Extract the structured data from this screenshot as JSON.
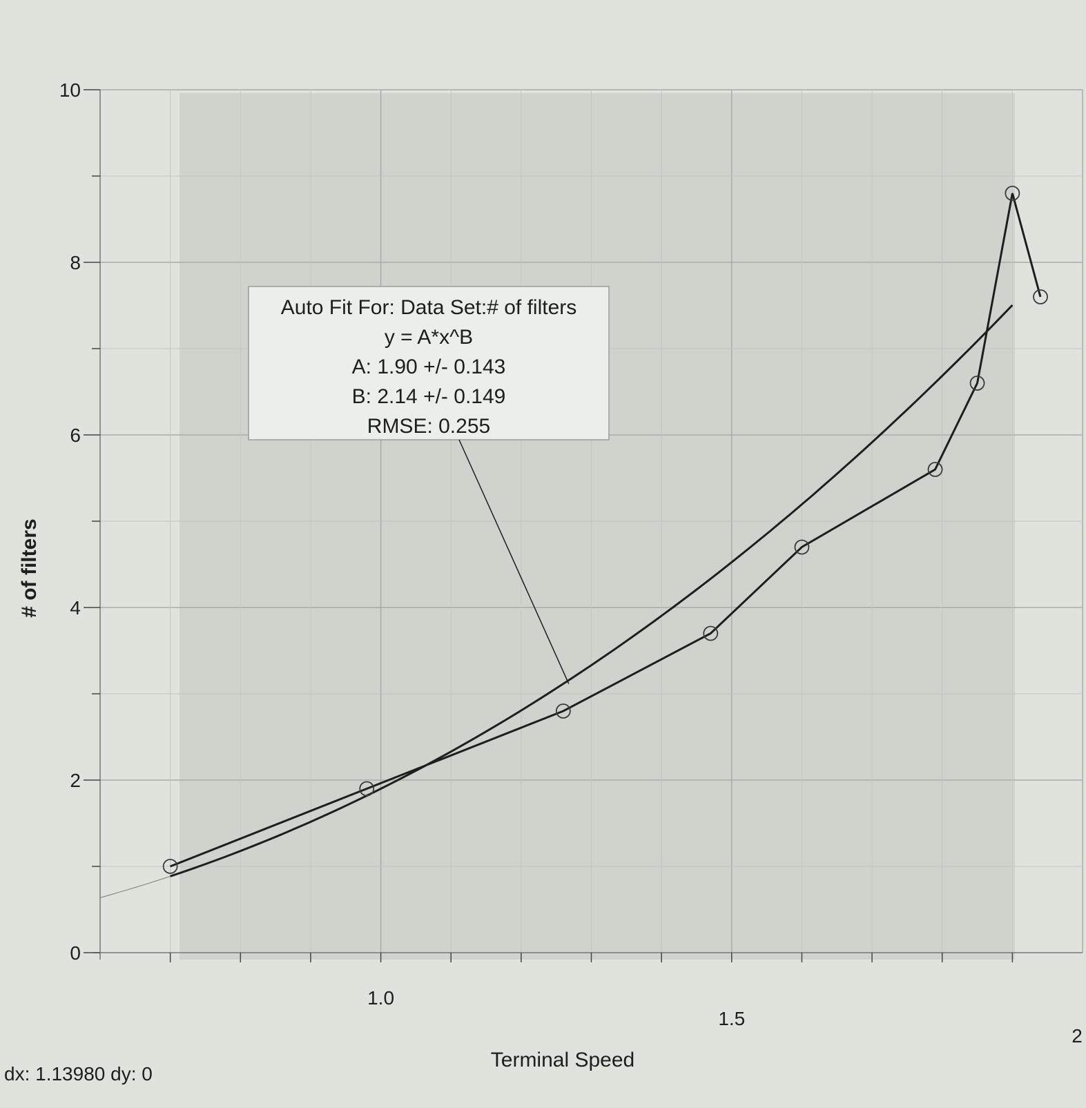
{
  "chart_data": {
    "type": "scatter",
    "xlabel": "Terminal Speed",
    "ylabel": "# of filters",
    "xlim": [
      0.6,
      2.0
    ],
    "ylim": [
      0,
      10
    ],
    "x_ticks": [
      "1.0",
      "1.5",
      "2"
    ],
    "y_ticks": [
      "0",
      "2",
      "4",
      "6",
      "8",
      "10"
    ],
    "grid": true,
    "series": [
      {
        "points": [
          [
            0.7,
            1.0
          ],
          [
            0.98,
            1.9
          ],
          [
            1.26,
            2.8
          ],
          [
            1.47,
            3.7
          ],
          [
            1.6,
            4.7
          ],
          [
            1.79,
            5.6
          ],
          [
            1.85,
            6.6
          ],
          [
            1.9,
            8.8
          ],
          [
            1.94,
            7.6
          ]
        ]
      }
    ],
    "fit": {
      "A": 1.9,
      "B": 2.14,
      "x_range": [
        0.7,
        1.9
      ],
      "box_lines": [
        "Auto Fit For:  Data Set:# of filters",
        "y = A*x^B",
        "A: 1.90 +/- 0.143",
        "B: 2.14 +/- 0.149",
        "RMSE: 0.255"
      ]
    }
  },
  "status": {
    "readout": "dx: 1.13980 dy: 0"
  },
  "colors": {
    "background": "#dfe3dc",
    "plot_band": "#cfd3cc",
    "grid": "#a9aca6",
    "ink": "#1e1e1e",
    "box_fill": "#eceee9"
  }
}
